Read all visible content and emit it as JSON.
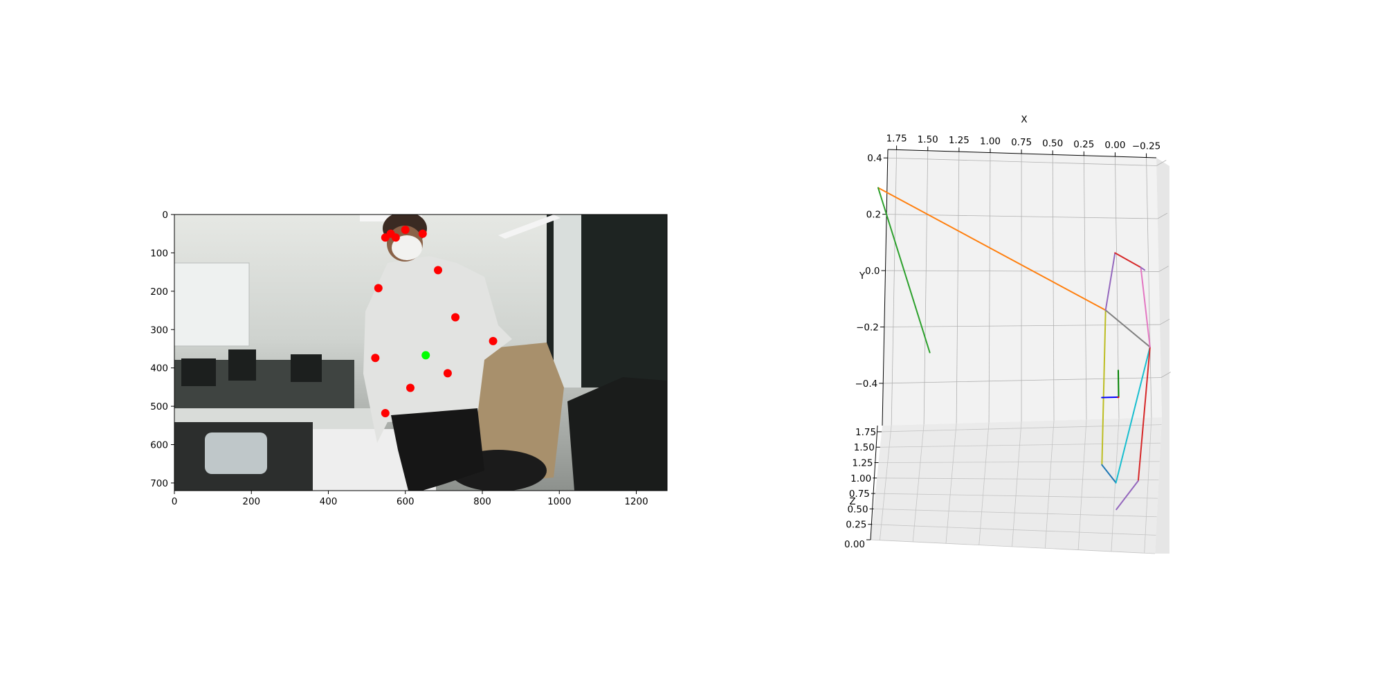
{
  "chart_data": [
    {
      "type": "scatter",
      "subtype": "image-keypoint-overlay",
      "background": "photo of a person in a white hoodie and face mask standing in an office",
      "xlim": [
        0,
        1280
      ],
      "ylim": [
        720,
        0
      ],
      "xticks": [
        "0",
        "200",
        "400",
        "600",
        "800",
        "1000",
        "1200"
      ],
      "yticks": [
        "0",
        "100",
        "200",
        "300",
        "400",
        "500",
        "600",
        "700"
      ],
      "series": [
        {
          "color": "#ff0000",
          "points": [
            {
              "x": 548,
              "y": 60
            },
            {
              "x": 562,
              "y": 50
            },
            {
              "x": 575,
              "y": 60
            },
            {
              "x": 600,
              "y": 40
            },
            {
              "x": 645,
              "y": 50
            },
            {
              "x": 685,
              "y": 145
            },
            {
              "x": 530,
              "y": 192
            },
            {
              "x": 730,
              "y": 268
            },
            {
              "x": 828,
              "y": 330
            },
            {
              "x": 522,
              "y": 374
            },
            {
              "x": 710,
              "y": 414
            },
            {
              "x": 613,
              "y": 452
            },
            {
              "x": 548,
              "y": 518
            }
          ]
        },
        {
          "color": "#00ff00",
          "points": [
            {
              "x": 653,
              "y": 367
            }
          ]
        }
      ]
    },
    {
      "type": "line",
      "subtype": "3d-skeleton",
      "xlabel": "X",
      "ylabel": "Y",
      "zlabel": "Z",
      "xlim": [
        1.82,
        -0.33
      ],
      "ylim": [
        -0.55,
        0.43
      ],
      "zlim": [
        0.0,
        1.85
      ],
      "xticks": [
        1.75,
        1.5,
        1.25,
        1.0,
        0.75,
        0.5,
        0.25,
        0.0,
        -0.25
      ],
      "xtick_labels": [
        "1.75",
        "1.50",
        "1.25",
        "1.00",
        "0.75",
        "0.50",
        "0.25",
        "0.00",
        "−0.25"
      ],
      "yticks": [
        0.4,
        0.2,
        0.0,
        -0.2,
        -0.4
      ],
      "ytick_labels": [
        "0.4",
        "0.2",
        "0.0",
        "−0.2",
        "−0.4"
      ],
      "zticks": [
        0.0,
        0.25,
        0.5,
        0.75,
        1.0,
        1.25,
        1.5,
        1.75
      ],
      "ztick_labels": [
        "0.00",
        "0.25",
        "0.50",
        "0.75",
        "1.00",
        "1.25",
        "1.50",
        "1.75"
      ],
      "grid": true,
      "segments": [
        {
          "color": "#ff7f0e",
          "x": [
            1.71,
            0.02
          ],
          "y": [
            0.33,
            -0.13
          ],
          "z": [
            1.75,
            0.7
          ]
        },
        {
          "color": "#2ca02c",
          "x": [
            1.71,
            1.29
          ],
          "y": [
            0.33,
            -0.26
          ],
          "z": [
            1.75,
            1.7
          ]
        },
        {
          "color": "#bcbd22",
          "x": [
            0.02,
            0.08
          ],
          "y": [
            -0.13,
            -0.71
          ],
          "z": [
            0.7,
            0.55
          ]
        },
        {
          "color": "#1f77b4",
          "x": [
            0.08,
            -0.02
          ],
          "y": [
            -0.71,
            -0.78
          ],
          "z": [
            0.55,
            0.5
          ]
        },
        {
          "color": "#7f7f7f",
          "x": [
            0.02,
            -0.27
          ],
          "y": [
            -0.13,
            -0.28
          ],
          "z": [
            0.7,
            0.2
          ]
        },
        {
          "color": "#17becf",
          "x": [
            -0.27,
            -0.02
          ],
          "y": [
            -0.28,
            -0.78
          ],
          "z": [
            0.2,
            0.5
          ]
        },
        {
          "color": "#d62728",
          "x": [
            -0.27,
            -0.17
          ],
          "y": [
            -0.28,
            -0.78
          ],
          "z": [
            0.2,
            0.3
          ]
        },
        {
          "color": "#9467bd",
          "x": [
            -0.17,
            -0.02
          ],
          "y": [
            -0.78,
            -0.88
          ],
          "z": [
            0.3,
            0.5
          ]
        },
        {
          "color": "#9467bd",
          "x": [
            0.02,
            -0.04
          ],
          "y": [
            -0.13,
            0.08
          ],
          "z": [
            0.7,
            0.5
          ]
        },
        {
          "color": "#d62728",
          "x": [
            -0.04,
            -0.21
          ],
          "y": [
            0.08,
            0.02
          ],
          "z": [
            0.5,
            0.2
          ]
        },
        {
          "color": "#e377c2",
          "x": [
            -0.21,
            -0.27
          ],
          "y": [
            0.02,
            -0.28
          ],
          "z": [
            0.2,
            0.2
          ]
        },
        {
          "color": "#9467bd",
          "x": [
            -0.21,
            -0.24
          ],
          "y": [
            0.02,
            0.01
          ],
          "z": [
            0.2,
            0.2
          ]
        },
        {
          "color": "#0000ff",
          "x": [
            0.13,
            0.0
          ],
          "y": [
            -0.47,
            -0.47
          ],
          "z": [
            0.0,
            0.0
          ]
        },
        {
          "color": "#008000",
          "x": [
            0.0,
            0.0
          ],
          "y": [
            -0.47,
            -0.37
          ],
          "z": [
            0.0,
            0.0
          ]
        },
        {
          "color": "#ff0000",
          "x": [
            0.0,
            0.0
          ],
          "y": [
            -0.47,
            -0.47
          ],
          "z": [
            0.0,
            0.05
          ]
        }
      ]
    }
  ]
}
